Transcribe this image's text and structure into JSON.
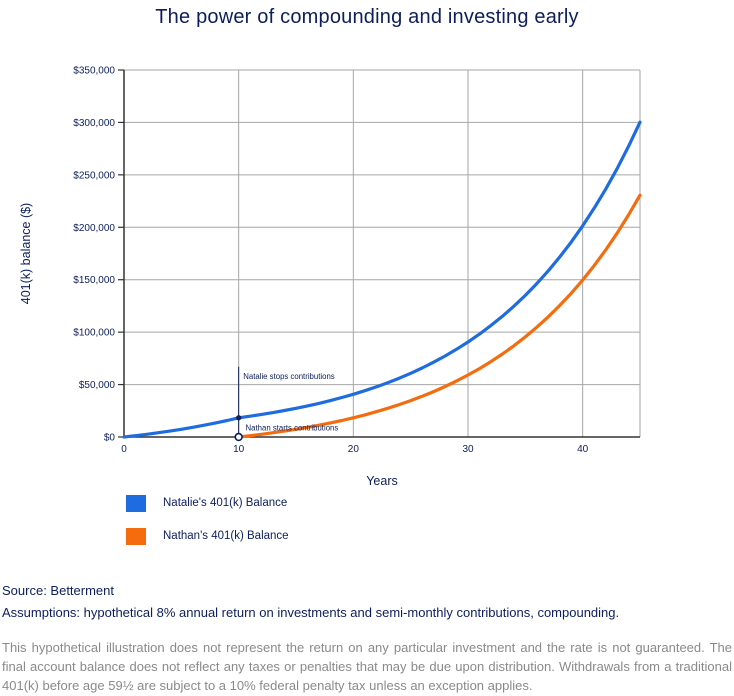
{
  "colors": {
    "navy": "#0d1e5c",
    "blue": "#1e6ce0",
    "orange": "#f56c0e",
    "grid": "#a6a6a6",
    "axis": "#333333",
    "disclaimer_gray": "#8a8a8a",
    "background": "#ffffff"
  },
  "chart_data": {
    "type": "line",
    "title": "The power of compounding and investing early",
    "xlabel": "Years",
    "ylabel": "401(k) balance ($)",
    "xlim": [
      0,
      45
    ],
    "ylim": [
      0,
      350000
    ],
    "grid": true,
    "legend_position": "bottom-left",
    "xticks": [
      {
        "value": 0,
        "label": "0"
      },
      {
        "value": 10,
        "label": "10"
      },
      {
        "value": 20,
        "label": "20"
      },
      {
        "value": 30,
        "label": "30"
      },
      {
        "value": 40,
        "label": "40"
      }
    ],
    "yticks": [
      {
        "value": 0,
        "label": "$0"
      },
      {
        "value": 50000,
        "label": "$50,000"
      },
      {
        "value": 100000,
        "label": "$100,000"
      },
      {
        "value": 150000,
        "label": "$150,000"
      },
      {
        "value": 200000,
        "label": "$200,000"
      },
      {
        "value": 250000,
        "label": "$250,000"
      },
      {
        "value": 300000,
        "label": "$300,000"
      },
      {
        "value": 350000,
        "label": "$350,000"
      }
    ],
    "series": [
      {
        "name": "Natalie's 401(k) Balance",
        "color": "#1e6ce0",
        "x": [
          0,
          1,
          2,
          3,
          4,
          5,
          6,
          7,
          8,
          9,
          10,
          11,
          12,
          13,
          14,
          15,
          16,
          17,
          18,
          19,
          20,
          21,
          22,
          23,
          24,
          25,
          26,
          27,
          28,
          29,
          30,
          31,
          32,
          33,
          34,
          35,
          36,
          37,
          38,
          39,
          40,
          41,
          42,
          43,
          44,
          45
        ],
        "values": [
          0,
          1247,
          2598,
          4061,
          5646,
          7362,
          9222,
          11236,
          13417,
          15780,
          18339,
          19864,
          21515,
          23304,
          25241,
          27340,
          29613,
          32076,
          34743,
          37632,
          40761,
          44150,
          47821,
          51797,
          56104,
          60769,
          65822,
          71295,
          77223,
          83645,
          90600,
          98133,
          106293,
          115132,
          124705,
          135074,
          146306,
          158471,
          171648,
          185919,
          201379,
          218124,
          236261,
          255906,
          277185,
          300232
        ]
      },
      {
        "name": "Nathan's 401(k) Balance",
        "color": "#f56c0e",
        "x": [
          10,
          11,
          12,
          13,
          14,
          15,
          16,
          17,
          18,
          19,
          20,
          21,
          22,
          23,
          24,
          25,
          26,
          27,
          28,
          29,
          30,
          31,
          32,
          33,
          34,
          35,
          36,
          37,
          38,
          39,
          40,
          41,
          42,
          43,
          44,
          45
        ],
        "values": [
          0,
          1247,
          2598,
          4061,
          5646,
          7362,
          9222,
          11236,
          13417,
          15780,
          18339,
          21112,
          24114,
          27367,
          30889,
          34705,
          38838,
          43314,
          48163,
          53415,
          59104,
          65266,
          71940,
          79170,
          87000,
          95481,
          104668,
          114618,
          125396,
          137069,
          149714,
          163410,
          178245,
          194313,
          211718,
          230569
        ]
      }
    ],
    "annotations": {
      "vline": {
        "year": 10,
        "from_value": 67000,
        "to_value": 0
      },
      "stop_dot": {
        "year": 10,
        "value": 18339
      },
      "start_circle": {
        "year": 10,
        "value": 0
      },
      "labels": [
        {
          "text": "Natalie stops contributions",
          "year": 10.4,
          "value": 55300
        },
        {
          "text": "Nathan starts contributions",
          "year": 10.6,
          "value": 6200
        }
      ]
    }
  },
  "source": "Source: Betterment",
  "assumptions": "Assumptions: hypothetical 8% annual return on investments and semi-monthly contributions, compounding.",
  "disclaimer": "This hypothetical illustration does not represent the return on any particular investment and the rate is not guaranteed. The final account balance does not reflect any taxes or penalties that may be due upon distribution. Withdrawals from a traditional 401(k) before age 59½ are subject to a 10% federal penalty tax unless an exception applies."
}
